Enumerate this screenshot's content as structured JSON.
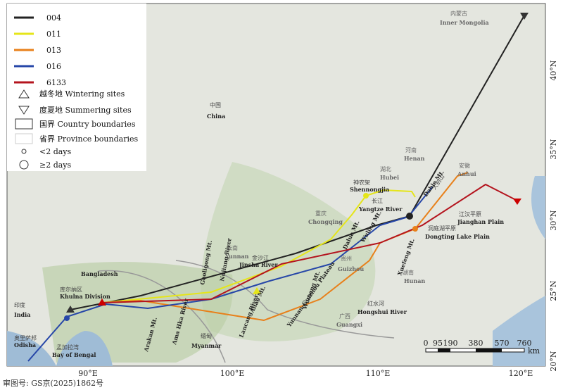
{
  "legend": {
    "tracks": [
      {
        "name": "004",
        "color": "#222222"
      },
      {
        "name": "011",
        "color": "#e5e51a"
      },
      {
        "name": "013",
        "color": "#e8801a"
      },
      {
        "name": "016",
        "color": "#2747a8"
      },
      {
        "name": "6133",
        "color": "#b4141e"
      }
    ],
    "symbols": [
      "越冬地 Wintering sites",
      "度夏地 Summering sites",
      "国界 Country boundaries",
      "省界 Province boundaries",
      "<2 days",
      "≥2 days"
    ]
  },
  "axes": {
    "lon_labels": [
      "90°E",
      "100°E",
      "110°E",
      "120°E"
    ],
    "lat_labels": [
      "40°N",
      "35°N",
      "30°N",
      "25°N",
      "20°N"
    ]
  },
  "scale_bar": {
    "labels": [
      "0",
      "95",
      "190",
      "380",
      "570",
      "760"
    ],
    "unit": "km"
  },
  "places": [
    "内蒙古",
    "Inner Mongolia",
    "中国",
    "China",
    "河南",
    "Henan",
    "湖北",
    "Hubei",
    "安徽",
    "Anhui",
    "神农架",
    "Shennongjia",
    "长江",
    "Yangtze River",
    "大别山",
    "Dabie Mt.",
    "江汉平原",
    "Jianghan Plain",
    "洞庭湖平原",
    "Dongting Lake Plain",
    "重庆",
    "Chongqing",
    "贵州",
    "Guizhou",
    "湖南",
    "Hunan",
    "广西",
    "Guangxi",
    "云南",
    "Yunnan",
    "金沙江",
    "Jinsha River",
    "红水河",
    "Hongshui River",
    "Bangladesh",
    "库尔纳区",
    "Khulna Division",
    "印度",
    "India",
    "奥里萨邦",
    "Odisha",
    "孟加拉湾",
    "Bay of Bengal",
    "缅甸",
    "Myanmar",
    "Arakan Mt.",
    "Ama Hka River",
    "Gaoligong Mt.",
    "Nujiang River",
    "Ailao Mt.",
    "Lancang River",
    "Wuling Mt.",
    "Daluo Mt.",
    "Wumeng Mt.",
    "Yunnan-Guizhou Plateau",
    "Xuefeng Mt."
  ],
  "footer": "审图号: GS京(2025)1862号"
}
